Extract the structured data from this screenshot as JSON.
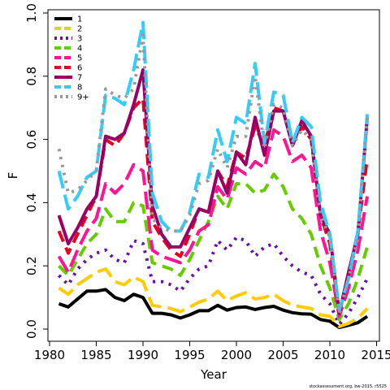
{
  "chart_data": {
    "type": "line",
    "title": "",
    "xlabel": "Year",
    "ylabel": "F",
    "xlim": [
      1981,
      2014
    ],
    "ylim": [
      0.0,
      1.0
    ],
    "xticks": [
      1980,
      1985,
      1990,
      1995,
      2000,
      2005,
      2010,
      2015
    ],
    "yticks": [
      0.0,
      0.2,
      0.4,
      0.6,
      0.8,
      1.0
    ],
    "ytick_labels": [
      "0.0",
      "0.2",
      "0.4",
      "0.6",
      "0.8",
      "1.0"
    ],
    "legend_position": "top-left",
    "grid": false,
    "credit": "stockassessment.org, bw-2015, r5525",
    "x": [
      1981,
      1982,
      1983,
      1984,
      1985,
      1986,
      1987,
      1988,
      1989,
      1990,
      1991,
      1992,
      1993,
      1994,
      1995,
      1996,
      1997,
      1998,
      1999,
      2000,
      2001,
      2002,
      2003,
      2004,
      2005,
      2006,
      2007,
      2008,
      2009,
      2010,
      2011,
      2012,
      2013,
      2014
    ],
    "series": [
      {
        "name": "1",
        "color": "#000000",
        "dash": "solid",
        "values": [
          0.08,
          0.07,
          0.095,
          0.12,
          0.12,
          0.125,
          0.1,
          0.09,
          0.11,
          0.1,
          0.05,
          0.05,
          0.045,
          0.035,
          0.045,
          0.058,
          0.058,
          0.075,
          0.06,
          0.068,
          0.07,
          0.062,
          0.068,
          0.072,
          0.06,
          0.052,
          0.048,
          0.047,
          0.03,
          0.025,
          0.005,
          0.012,
          0.02,
          0.04
        ]
      },
      {
        "name": "2",
        "color": "#FFCC00",
        "dash": "longdash",
        "values": [
          0.13,
          0.11,
          0.14,
          0.16,
          0.18,
          0.19,
          0.15,
          0.14,
          0.165,
          0.15,
          0.075,
          0.07,
          0.065,
          0.055,
          0.07,
          0.085,
          0.095,
          0.12,
          0.09,
          0.105,
          0.115,
          0.095,
          0.1,
          0.11,
          0.09,
          0.075,
          0.07,
          0.065,
          0.045,
          0.04,
          0.008,
          0.018,
          0.035,
          0.065
        ]
      },
      {
        "name": "3",
        "color": "#6A0DAD",
        "dash": "dotted",
        "values": [
          0.17,
          0.14,
          0.19,
          0.22,
          0.24,
          0.25,
          0.22,
          0.21,
          0.28,
          0.27,
          0.15,
          0.15,
          0.14,
          0.12,
          0.16,
          0.19,
          0.2,
          0.28,
          0.25,
          0.29,
          0.28,
          0.23,
          0.26,
          0.27,
          0.23,
          0.2,
          0.18,
          0.17,
          0.11,
          0.08,
          0.015,
          0.05,
          0.1,
          0.16
        ]
      },
      {
        "name": "4",
        "color": "#66CC00",
        "dash": "dashed",
        "values": [
          0.2,
          0.17,
          0.22,
          0.27,
          0.3,
          0.38,
          0.34,
          0.34,
          0.4,
          0.39,
          0.21,
          0.2,
          0.19,
          0.17,
          0.22,
          0.28,
          0.34,
          0.42,
          0.38,
          0.46,
          0.46,
          0.43,
          0.44,
          0.49,
          0.45,
          0.38,
          0.35,
          0.3,
          0.2,
          0.13,
          0.03,
          0.08,
          0.16,
          0.26
        ]
      },
      {
        "name": "5",
        "color": "#FF1493",
        "dash": "longdash",
        "values": [
          0.23,
          0.18,
          0.25,
          0.31,
          0.35,
          0.46,
          0.43,
          0.46,
          0.52,
          0.5,
          0.25,
          0.23,
          0.22,
          0.21,
          0.25,
          0.31,
          0.33,
          0.45,
          0.41,
          0.51,
          0.49,
          0.53,
          0.51,
          0.63,
          0.61,
          0.53,
          0.55,
          0.51,
          0.31,
          0.21,
          0.04,
          0.13,
          0.25,
          0.42
        ]
      },
      {
        "name": "6",
        "color": "#E8001C",
        "dash": "dashed",
        "values": [
          0.31,
          0.24,
          0.3,
          0.36,
          0.42,
          0.6,
          0.58,
          0.62,
          0.7,
          0.73,
          0.34,
          0.29,
          0.25,
          0.23,
          0.3,
          0.38,
          0.37,
          0.5,
          0.45,
          0.56,
          0.54,
          0.64,
          0.58,
          0.7,
          0.69,
          0.59,
          0.64,
          0.6,
          0.36,
          0.27,
          0.05,
          0.17,
          0.31,
          0.54
        ]
      },
      {
        "name": "7",
        "color": "#990066",
        "dash": "solid",
        "values": [
          0.36,
          0.27,
          0.32,
          0.38,
          0.42,
          0.61,
          0.6,
          0.62,
          0.71,
          0.82,
          0.39,
          0.3,
          0.26,
          0.26,
          0.32,
          0.38,
          0.37,
          0.5,
          0.43,
          0.56,
          0.52,
          0.67,
          0.55,
          0.69,
          0.69,
          0.58,
          0.66,
          0.61,
          0.36,
          0.3,
          0.05,
          0.18,
          0.3,
          0.67
        ]
      },
      {
        "name": "8",
        "color": "#33CCFF",
        "dash": "longdash",
        "values": [
          0.5,
          0.38,
          0.42,
          0.48,
          0.5,
          0.74,
          0.73,
          0.71,
          0.82,
          0.97,
          0.43,
          0.34,
          0.31,
          0.31,
          0.37,
          0.49,
          0.48,
          0.63,
          0.53,
          0.67,
          0.65,
          0.84,
          0.59,
          0.75,
          0.74,
          0.59,
          0.67,
          0.64,
          0.4,
          0.3,
          0.06,
          0.16,
          0.31,
          0.68
        ]
      },
      {
        "name": "9+",
        "color": "#999999",
        "dash": "dotted",
        "values": [
          0.57,
          0.43,
          0.44,
          0.47,
          0.5,
          0.76,
          0.74,
          0.73,
          0.76,
          0.93,
          0.35,
          0.32,
          0.31,
          0.31,
          0.36,
          0.46,
          0.47,
          0.57,
          0.51,
          0.61,
          0.61,
          0.8,
          0.57,
          0.71,
          0.7,
          0.58,
          0.63,
          0.6,
          0.36,
          0.29,
          0.05,
          0.16,
          0.29,
          0.68
        ]
      }
    ]
  }
}
